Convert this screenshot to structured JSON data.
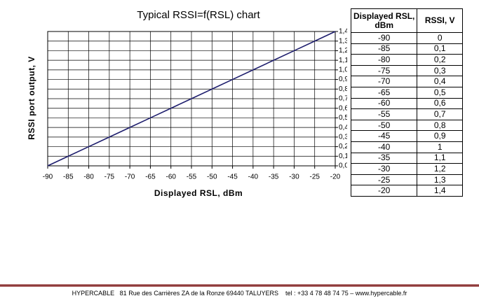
{
  "chart_data": {
    "type": "line",
    "title": "Typical RSSI=f(RSL) chart",
    "x_label": "Displayed RSL, dBm",
    "y_label": "RSSI port output, V",
    "x": [
      -90,
      -85,
      -80,
      -75,
      -70,
      -65,
      -60,
      -55,
      -50,
      -45,
      -40,
      -35,
      -30,
      -25,
      -20
    ],
    "series": [
      {
        "name": "RSSI",
        "color": "#1f1f6e",
        "values": [
          0,
          0.1,
          0.2,
          0.3,
          0.4,
          0.5,
          0.6,
          0.7,
          0.8,
          0.9,
          1,
          1.1,
          1.2,
          1.3,
          1.4
        ]
      }
    ],
    "xlim": [
      -90,
      -20
    ],
    "ylim": [
      0,
      1.4
    ],
    "xticks": [
      -90,
      -85,
      -80,
      -75,
      -70,
      -65,
      -60,
      -55,
      -50,
      -45,
      -40,
      -35,
      -30,
      -25,
      -20
    ],
    "yticks": [
      {
        "value": 0,
        "label": "0,0"
      },
      {
        "value": 0.1,
        "label": "0,1"
      },
      {
        "value": 0.2,
        "label": "0,2"
      },
      {
        "value": 0.3,
        "label": "0,3"
      },
      {
        "value": 0.4,
        "label": "0,4"
      },
      {
        "value": 0.5,
        "label": "0,5"
      },
      {
        "value": 0.6,
        "label": "0,6"
      },
      {
        "value": 0.7,
        "label": "0,7"
      },
      {
        "value": 0.8,
        "label": "0,8"
      },
      {
        "value": 0.9,
        "label": "0,9"
      },
      {
        "value": 1,
        "label": "1,0"
      },
      {
        "value": 1.1,
        "label": "1,1"
      },
      {
        "value": 1.2,
        "label": "1,2"
      },
      {
        "value": 1.3,
        "label": "1,3"
      },
      {
        "value": 1.4,
        "label": "1,4"
      }
    ],
    "grid": true
  },
  "table": {
    "header": [
      "Displayed RSL, dBm",
      "RSSI, V"
    ],
    "rows": [
      [
        "-90",
        "0"
      ],
      [
        "-85",
        "0,1"
      ],
      [
        "-80",
        "0,2"
      ],
      [
        "-75",
        "0,3"
      ],
      [
        "-70",
        "0,4"
      ],
      [
        "-65",
        "0,5"
      ],
      [
        "-60",
        "0,6"
      ],
      [
        "-55",
        "0,7"
      ],
      [
        "-50",
        "0,8"
      ],
      [
        "-45",
        "0,9"
      ],
      [
        "-40",
        "1"
      ],
      [
        "-35",
        "1,1"
      ],
      [
        "-30",
        "1,2"
      ],
      [
        "-25",
        "1,3"
      ],
      [
        "-20",
        "1,4"
      ]
    ]
  },
  "footer": {
    "text": "HYPERCABLE   81 Rue des Carrières ZA de la Ronze 69440 TALUYERS    tel : +33 4 78 48 74 75 – www.hypercable.fr"
  }
}
